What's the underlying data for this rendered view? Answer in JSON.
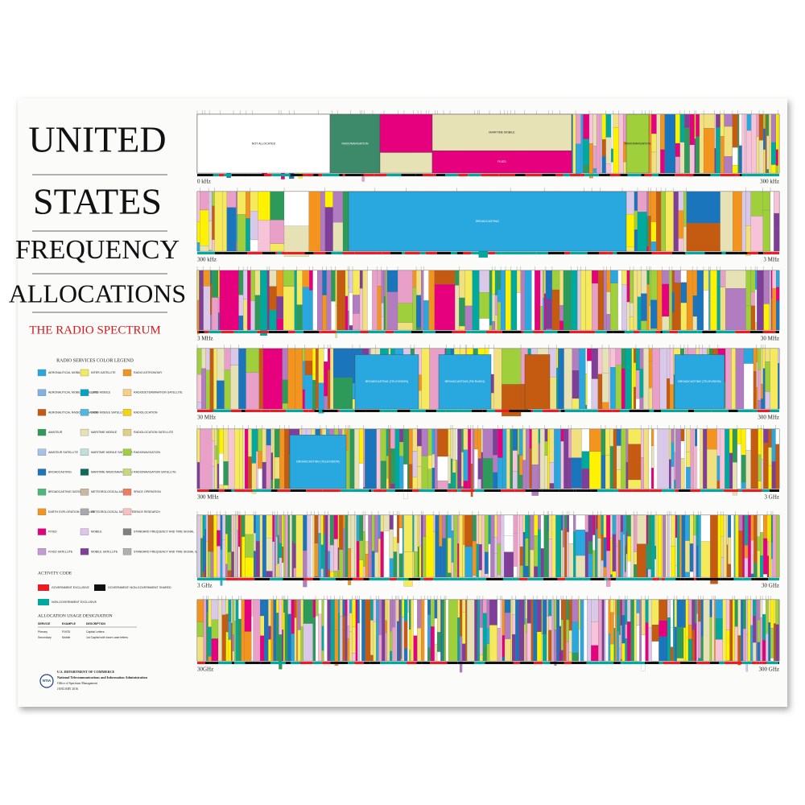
{
  "title": {
    "lines": [
      "UNITED",
      "STATES",
      "FREQUENCY",
      "ALLOCATIONS"
    ],
    "subtitle": "THE RADIO SPECTRUM"
  },
  "legend": {
    "title": "RADIO SERVICES COLOR LEGEND",
    "items": [
      "AERONAUTICAL MOBILE",
      "AERONAUTICAL MOBILE SATELLITE",
      "AERONAUTICAL RADIONAVIGATION",
      "AMATEUR",
      "AMATEUR SATELLITE",
      "BROADCASTING",
      "BROADCASTING SATELLITE",
      "EARTH EXPLORATION SATELLITE",
      "FIXED",
      "FIXED SATELLITE",
      "INTER-SATELLITE",
      "LAND MOBILE",
      "LAND MOBILE SATELLITE",
      "MARITIME MOBILE",
      "MARITIME MOBILE SATELLITE",
      "MARITIME RADIONAVIGATION",
      "METEOROLOGICAL AIDS",
      "METEOROLOGICAL SATELLITE",
      "MOBILE",
      "MOBILE SATELLITE",
      "RADIO ASTRONOMY",
      "RADIODETERMINATION SATELLITE",
      "RADIOLOCATION",
      "RADIOLOCATION SATELLITE",
      "RADIONAVIGATION",
      "RADIONAVIGATION SATELLITE",
      "SPACE OPERATION",
      "SPACE RESEARCH",
      "STANDARD FREQUENCY AND TIME SIGNAL",
      "STANDARD FREQUENCY AND TIME SIGNAL SATELLITE"
    ]
  },
  "activity_code": {
    "title": "ACTIVITY CODE",
    "items": [
      "GOVERNMENT EXCLUSIVE",
      "GOVERNMENT/ NON-GOVERNMENT SHARED",
      "NON-GOVERNMENT EXCLUSIVE"
    ]
  },
  "usage": {
    "title": "ALLOCATION USAGE DESIGNATION",
    "header": [
      "SERVICE",
      "EXAMPLE",
      "DESCRIPTION"
    ],
    "rows": [
      [
        "Primary",
        "FIXED",
        "Capital Letters"
      ],
      [
        "Secondary",
        "Mobile",
        "1st Capital with lower case letters"
      ]
    ]
  },
  "publisher": {
    "logo": "NTIA",
    "agency": "U.S. DEPARTMENT OF COMMERCE",
    "administration": "National Telecommunications and Information Administration",
    "office": "Office of Spectrum Management",
    "date": "JANUARY 2016"
  },
  "bands": [
    {
      "start": "0 kHz",
      "end": "300 kHz",
      "labels": [
        "NOT ALLOCATED",
        "RADIONAVIGATION",
        "MARITIME MOBILE",
        "FIXED",
        "RADIONAVIGATION"
      ]
    },
    {
      "start": "300 kHz",
      "end": "3 MHz",
      "labels": [
        "BROADCASTING"
      ]
    },
    {
      "start": "3 MHz",
      "end": "30 MHz",
      "labels": []
    },
    {
      "start": "30 MHz",
      "end": "300 MHz",
      "labels": [
        "BROADCASTING (TELEVISION)",
        "BROADCASTING (FM RADIO)",
        "BROADCASTING (TELEVISION)"
      ]
    },
    {
      "start": "300 MHz",
      "end": "3 GHz",
      "labels": [
        "BROADCASTING (TELEVISION)"
      ]
    },
    {
      "start": "3 GHz",
      "end": "30 GHz",
      "labels": []
    },
    {
      "start": "30GHz",
      "end": "300 GHz",
      "labels": []
    }
  ]
}
